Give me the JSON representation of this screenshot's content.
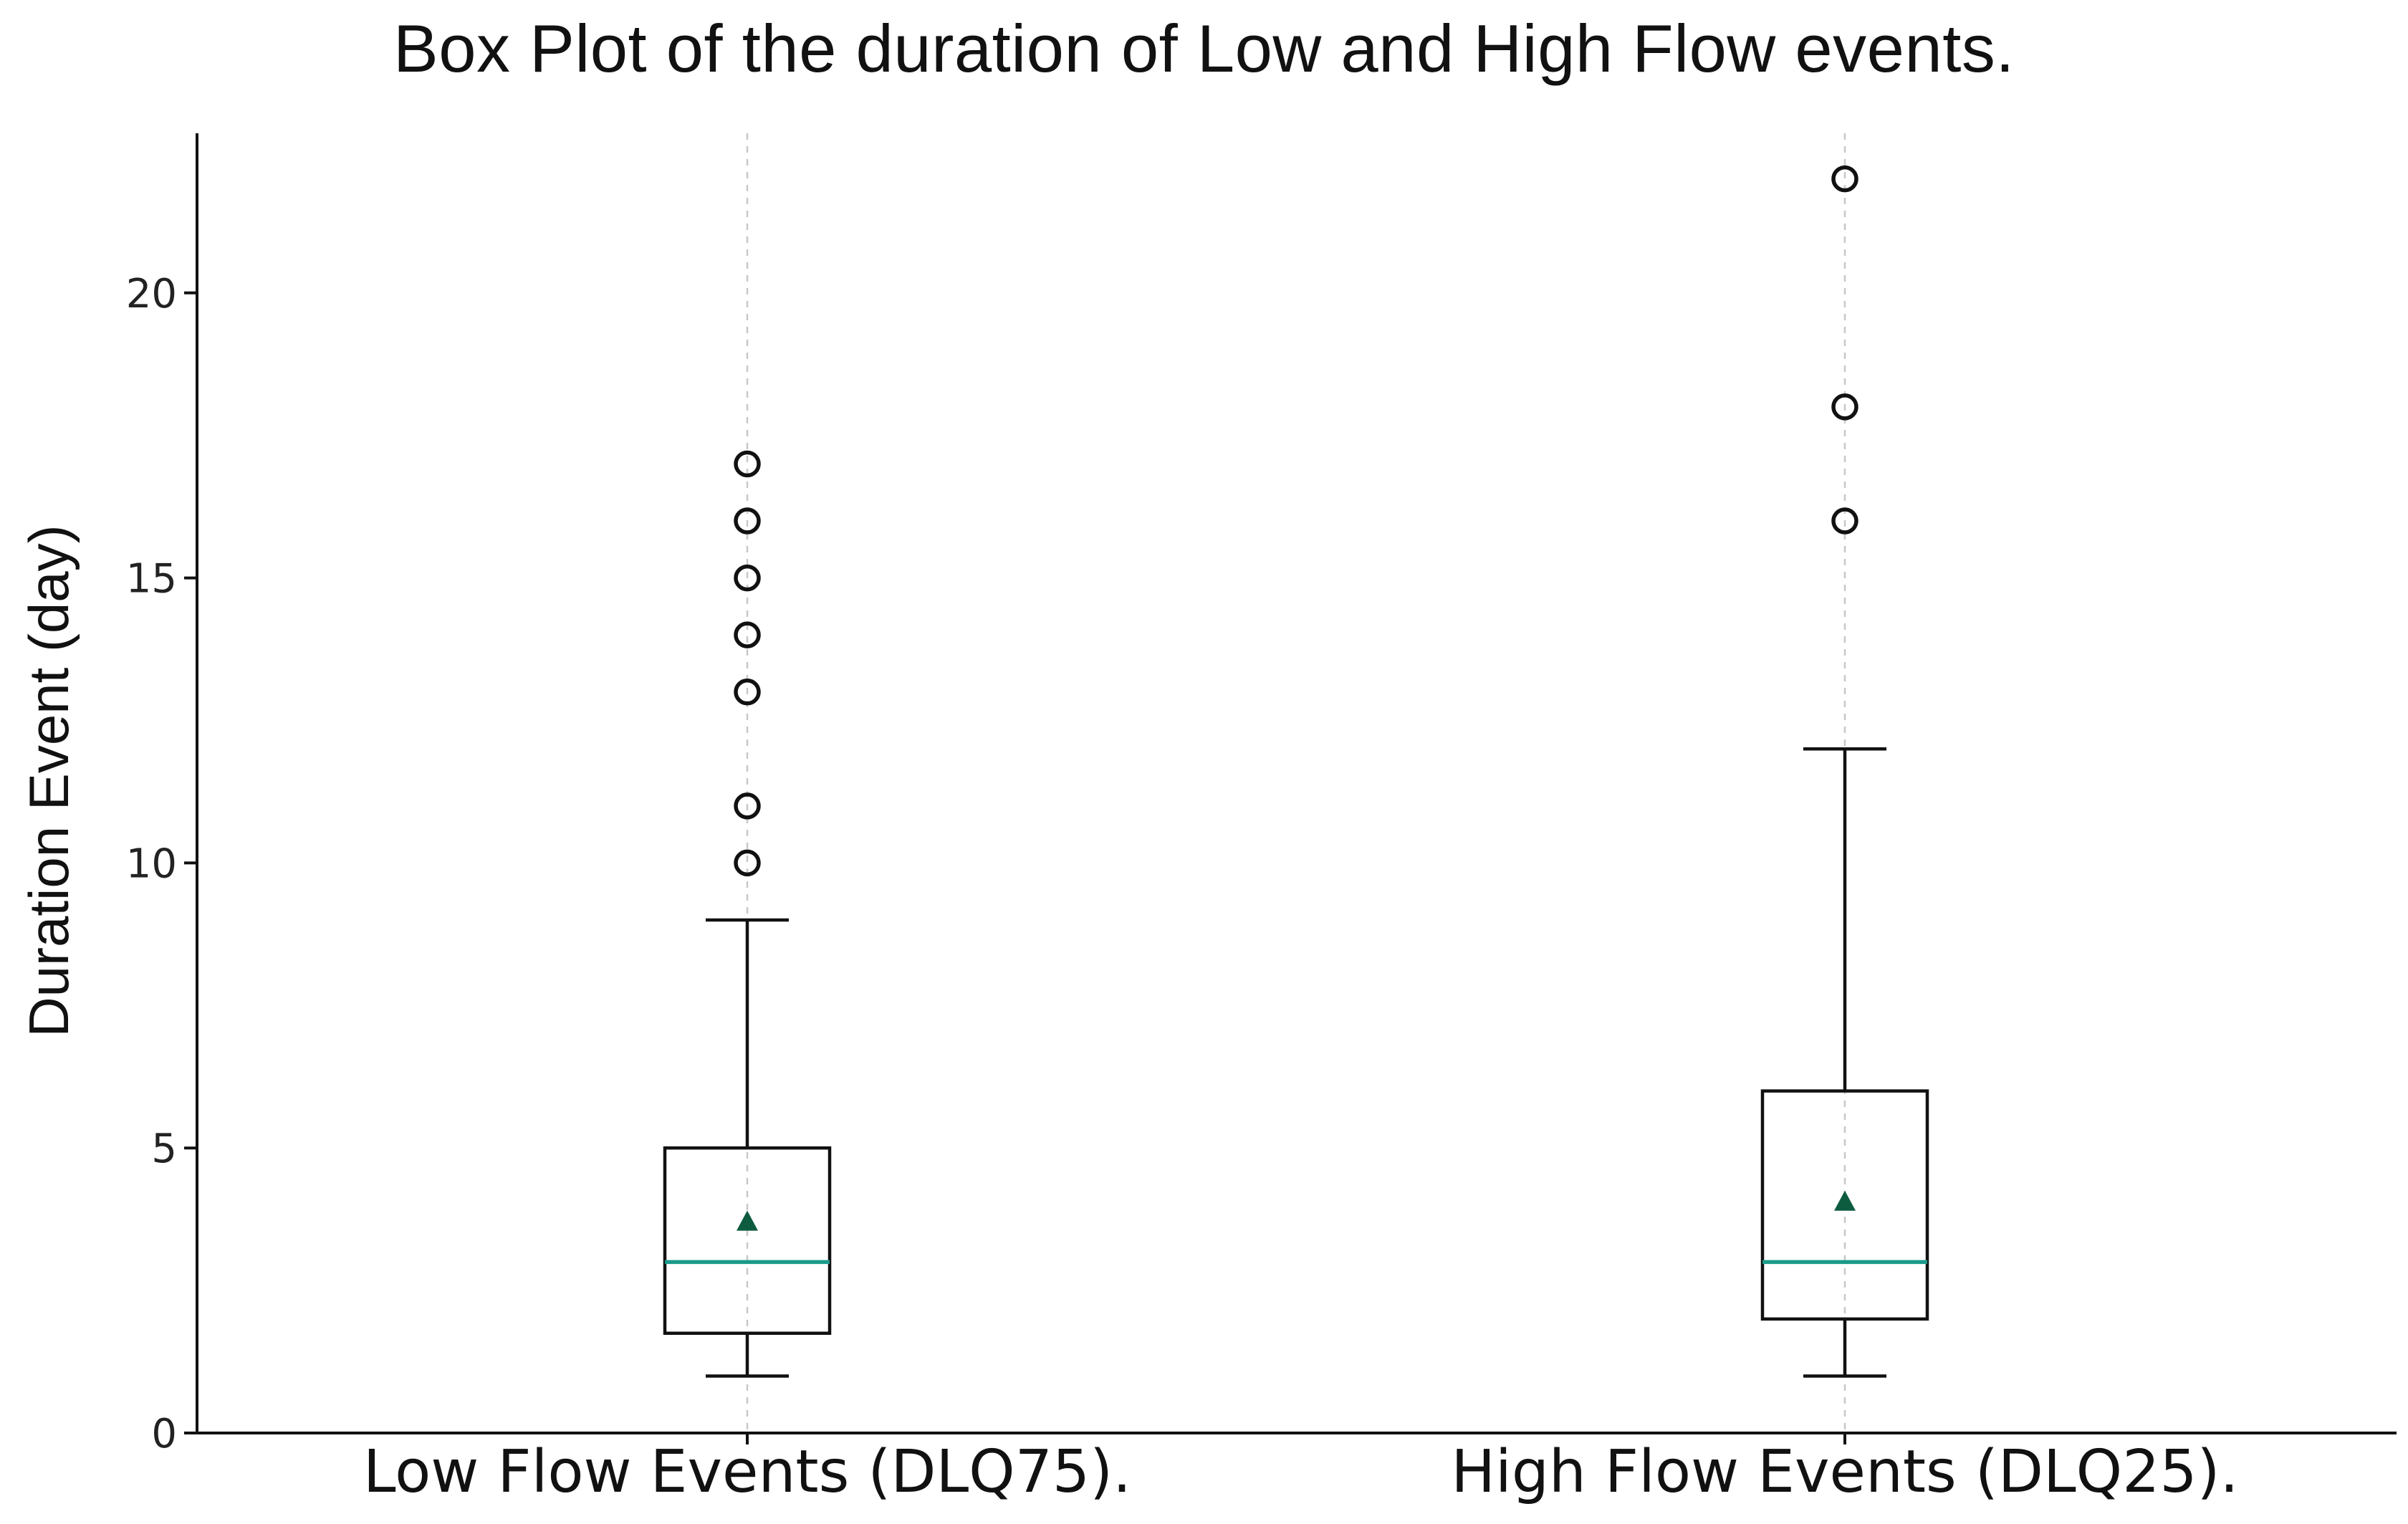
{
  "chart_data": {
    "type": "box",
    "title": "Box Plot of the duration of Low and High Flow events.",
    "xlabel": "",
    "ylabel": "Duration Event (day)",
    "ylim": [
      0,
      22.8
    ],
    "yticks": [
      0,
      5,
      10,
      15,
      20
    ],
    "grid": "vertical dashed lines at categories",
    "categories": [
      "Low Flow Events (DLQ75).",
      "High Flow Events (DLQ25)."
    ],
    "boxes": [
      {
        "category": "Low Flow Events (DLQ75).",
        "whisker_low": 1,
        "q1": 1.75,
        "median": 3,
        "q3": 5,
        "whisker_high": 9,
        "mean": 3.7,
        "outliers": [
          10,
          11,
          13,
          14,
          15,
          16,
          17
        ]
      },
      {
        "category": "High Flow Events (DLQ25).",
        "whisker_low": 1,
        "q1": 2,
        "median": 3,
        "q3": 6,
        "whisker_high": 12,
        "mean": 4.05,
        "outliers": [
          16,
          18,
          22
        ]
      }
    ],
    "colors": {
      "box": "#111111",
      "median": "#1a9b8a",
      "mean_marker": "#0d5c3f",
      "grid": "#c8c8c8"
    }
  }
}
